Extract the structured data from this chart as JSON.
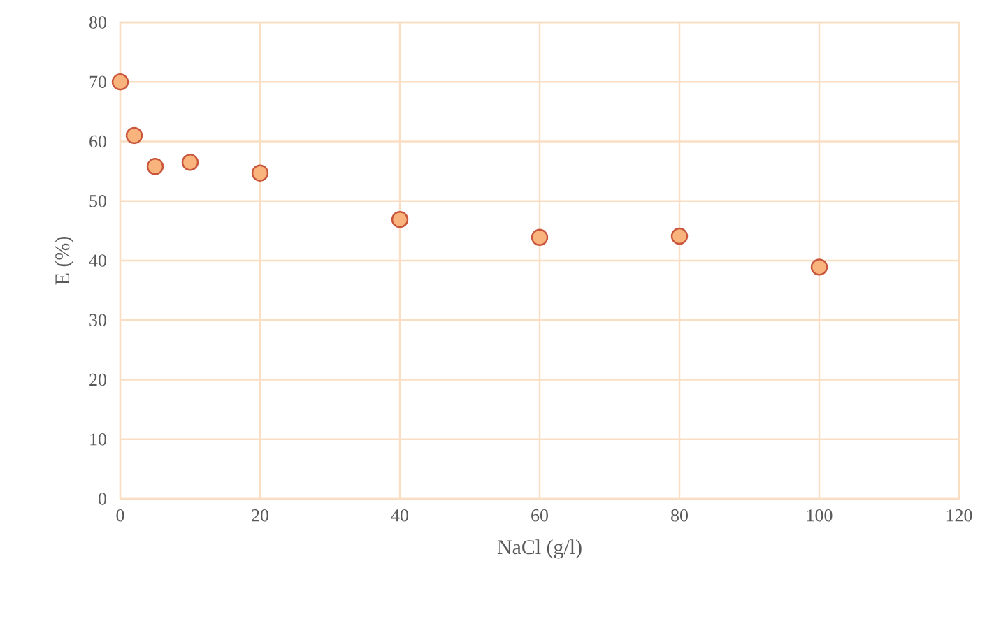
{
  "chart_data": {
    "type": "scatter",
    "xlabel": "NaCl (g/l)",
    "ylabel": "E (%)",
    "x": [
      0,
      2,
      5,
      10,
      20,
      40,
      60,
      80,
      100
    ],
    "series": [
      {
        "color": "#f8b47c",
        "values": [
          70,
          61,
          55.8,
          56.5,
          54.7,
          46.9,
          43.9,
          44.1,
          38.9
        ]
      }
    ],
    "xlim": [
      0,
      120
    ],
    "xticks": [
      0,
      20,
      40,
      60,
      80,
      100,
      120
    ],
    "ylim": [
      0,
      80
    ],
    "yticks": [
      0,
      10,
      20,
      30,
      40,
      50,
      60,
      70,
      80
    ],
    "grid": true,
    "marker": "circle"
  }
}
